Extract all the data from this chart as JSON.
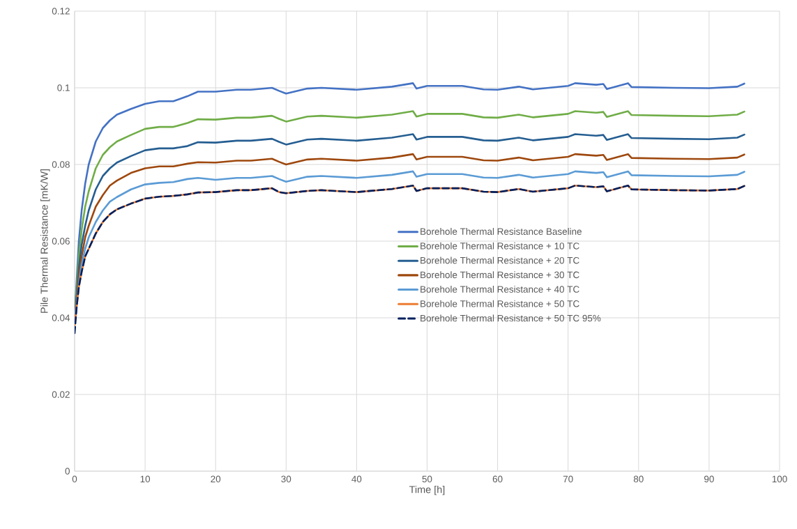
{
  "chart_data": {
    "type": "line",
    "xlabel": "Time [h]",
    "ylabel": "Pile Thermal Resistance [mK/W]",
    "x": [
      0,
      0.3,
      0.6,
      1,
      1.5,
      2,
      3,
      4,
      5,
      6,
      8,
      10,
      12,
      14,
      16,
      17.5,
      20,
      23,
      25,
      28,
      29,
      30,
      33,
      35,
      40,
      45,
      48,
      48.5,
      50,
      55,
      58,
      60,
      63,
      65,
      70,
      71,
      74,
      75,
      75.5,
      78.5,
      79,
      85,
      90,
      94,
      95
    ],
    "xlim": [
      0,
      100
    ],
    "xticks": [
      0,
      10,
      20,
      30,
      40,
      50,
      60,
      70,
      80,
      90,
      100
    ],
    "ylim": [
      0,
      0.12
    ],
    "yticks": [
      0,
      0.02,
      0.04,
      0.06,
      0.08,
      0.1,
      0.12
    ],
    "grid": true,
    "legend": "bottom right",
    "marker": "none",
    "series": [
      {
        "name": "Borehole Thermal Resistance Baseline",
        "color": "#4472c4",
        "line_style": "solid",
        "values": [
          0.04,
          0.05,
          0.06,
          0.068,
          0.075,
          0.08,
          0.086,
          0.0895,
          0.0915,
          0.093,
          0.0945,
          0.0958,
          0.0965,
          0.0965,
          0.0978,
          0.099,
          0.099,
          0.0995,
          0.0995,
          0.1,
          0.0992,
          0.0985,
          0.0998,
          0.1,
          0.0995,
          0.1003,
          0.1012,
          0.0998,
          0.1005,
          0.1005,
          0.0996,
          0.0995,
          0.1003,
          0.0996,
          0.1005,
          0.1012,
          0.1008,
          0.101,
          0.0997,
          0.1012,
          0.1002,
          0.1,
          0.0999,
          0.1003,
          0.1011
        ]
      },
      {
        "name": "Borehole Thermal Resistance + 10 TC",
        "color": "#70ad47",
        "line_style": "solid",
        "values": [
          0.04,
          0.048,
          0.056,
          0.063,
          0.069,
          0.073,
          0.079,
          0.0825,
          0.0845,
          0.086,
          0.0877,
          0.0893,
          0.0898,
          0.0898,
          0.0908,
          0.0918,
          0.0917,
          0.0922,
          0.0922,
          0.0927,
          0.0919,
          0.0912,
          0.0925,
          0.0927,
          0.0922,
          0.093,
          0.0939,
          0.0925,
          0.0932,
          0.0932,
          0.0923,
          0.0922,
          0.093,
          0.0923,
          0.0932,
          0.0939,
          0.0935,
          0.0937,
          0.0924,
          0.0939,
          0.0929,
          0.0927,
          0.0926,
          0.093,
          0.0938
        ]
      },
      {
        "name": "Borehole Thermal Resistance + 20 TC",
        "color": "#255e91",
        "line_style": "solid",
        "values": [
          0.04,
          0.046,
          0.053,
          0.059,
          0.064,
          0.068,
          0.0735,
          0.077,
          0.079,
          0.0805,
          0.0822,
          0.0837,
          0.0842,
          0.0842,
          0.0848,
          0.0858,
          0.0857,
          0.0862,
          0.0862,
          0.0867,
          0.0859,
          0.0852,
          0.0865,
          0.0867,
          0.0862,
          0.087,
          0.0879,
          0.0865,
          0.0872,
          0.0872,
          0.0863,
          0.0862,
          0.087,
          0.0863,
          0.0872,
          0.0879,
          0.0875,
          0.0877,
          0.0864,
          0.0879,
          0.0869,
          0.0867,
          0.0866,
          0.087,
          0.0878
        ]
      },
      {
        "name": "Borehole Thermal Resistance + 30 TC",
        "color": "#9e480e",
        "line_style": "solid",
        "values": [
          0.04,
          0.045,
          0.051,
          0.056,
          0.061,
          0.064,
          0.069,
          0.072,
          0.0745,
          0.0758,
          0.0778,
          0.079,
          0.0795,
          0.0795,
          0.0802,
          0.0806,
          0.0805,
          0.081,
          0.081,
          0.0815,
          0.0807,
          0.08,
          0.0813,
          0.0815,
          0.081,
          0.0818,
          0.0827,
          0.0813,
          0.082,
          0.082,
          0.0811,
          0.081,
          0.0818,
          0.0811,
          0.082,
          0.0827,
          0.0823,
          0.0825,
          0.0812,
          0.0827,
          0.0817,
          0.0815,
          0.0814,
          0.0818,
          0.0826
        ]
      },
      {
        "name": "Borehole Thermal Resistance + 40 TC",
        "color": "#5b9bd5",
        "line_style": "solid",
        "values": [
          0.04,
          0.044,
          0.049,
          0.054,
          0.058,
          0.061,
          0.065,
          0.068,
          0.0703,
          0.0715,
          0.0735,
          0.0748,
          0.0752,
          0.0754,
          0.0762,
          0.0765,
          0.076,
          0.0765,
          0.0765,
          0.077,
          0.0762,
          0.0755,
          0.0768,
          0.077,
          0.0765,
          0.0773,
          0.0782,
          0.0768,
          0.0775,
          0.0775,
          0.0766,
          0.0765,
          0.0773,
          0.0766,
          0.0775,
          0.0782,
          0.0778,
          0.078,
          0.0767,
          0.0782,
          0.0772,
          0.077,
          0.0769,
          0.0773,
          0.0781
        ]
      },
      {
        "name": "Borehole Thermal Resistance + 50 TC",
        "color": "#ed7d31",
        "line_style": "solid",
        "values": [
          0.038,
          0.043,
          0.048,
          0.052,
          0.056,
          0.058,
          0.062,
          0.065,
          0.067,
          0.0683,
          0.0698,
          0.0711,
          0.0716,
          0.0718,
          0.0722,
          0.0727,
          0.0728,
          0.0733,
          0.0733,
          0.0738,
          0.0728,
          0.0725,
          0.0731,
          0.0733,
          0.0728,
          0.0736,
          0.0745,
          0.0731,
          0.0738,
          0.0738,
          0.0729,
          0.0728,
          0.0736,
          0.0729,
          0.0738,
          0.0745,
          0.0741,
          0.0743,
          0.073,
          0.0745,
          0.0735,
          0.0733,
          0.0732,
          0.0736,
          0.0744
        ]
      },
      {
        "name": "Borehole Thermal Resistance + 50 TC 95%",
        "color": "#002060",
        "line_style": "dashed",
        "values": [
          0.036,
          0.043,
          0.048,
          0.052,
          0.056,
          0.058,
          0.062,
          0.065,
          0.067,
          0.0683,
          0.0698,
          0.0711,
          0.0716,
          0.0718,
          0.0722,
          0.0727,
          0.0728,
          0.0733,
          0.0733,
          0.0738,
          0.0728,
          0.0725,
          0.0731,
          0.0733,
          0.0728,
          0.0736,
          0.0745,
          0.0731,
          0.0738,
          0.0738,
          0.0729,
          0.0728,
          0.0736,
          0.0729,
          0.0738,
          0.0745,
          0.0741,
          0.0743,
          0.073,
          0.0745,
          0.0735,
          0.0733,
          0.0732,
          0.0736,
          0.0744
        ]
      }
    ]
  }
}
